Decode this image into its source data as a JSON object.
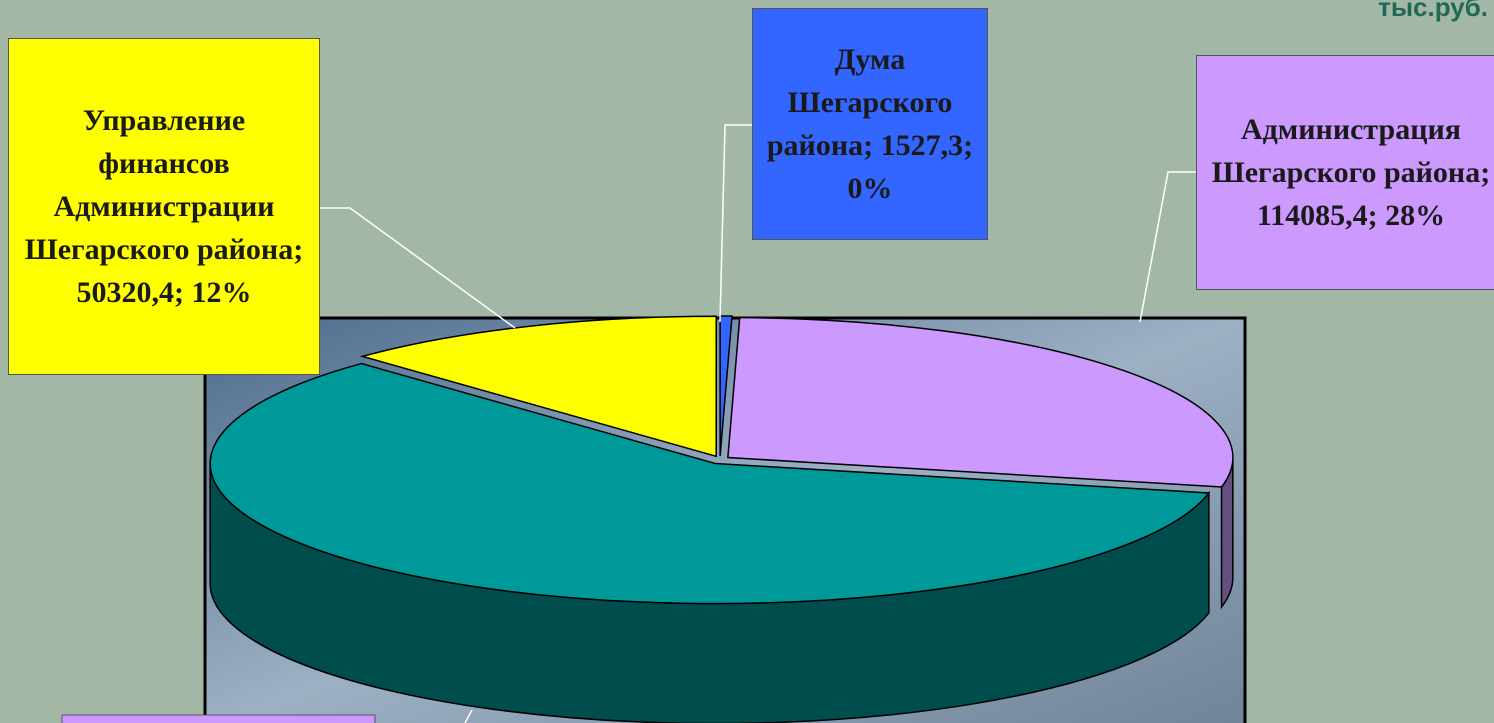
{
  "chart_data": {
    "type": "pie3d",
    "unit": "тыс.руб.",
    "categories": [
      "Дума Шегарского района",
      "Администрация Шегарского района",
      null,
      "Управление финансов Администрации Шегарского района"
    ],
    "values": [
      1527.3,
      114085.4,
      241515,
      50320.4
    ],
    "value_labels": [
      "Дума Шегарского района; 1527,3; 0%",
      "Администрация Шегарского района; 114085,4; 28%",
      null,
      "Управление финансов Администрации Шегарского района; 50320,4; 12%"
    ],
    "colors": [
      "#3366ff",
      "#cc99ff",
      "#009999",
      "#ffff00"
    ],
    "side_colors": [
      "#1a3380",
      "#665080",
      "#004d4d",
      "#808000"
    ]
  }
}
